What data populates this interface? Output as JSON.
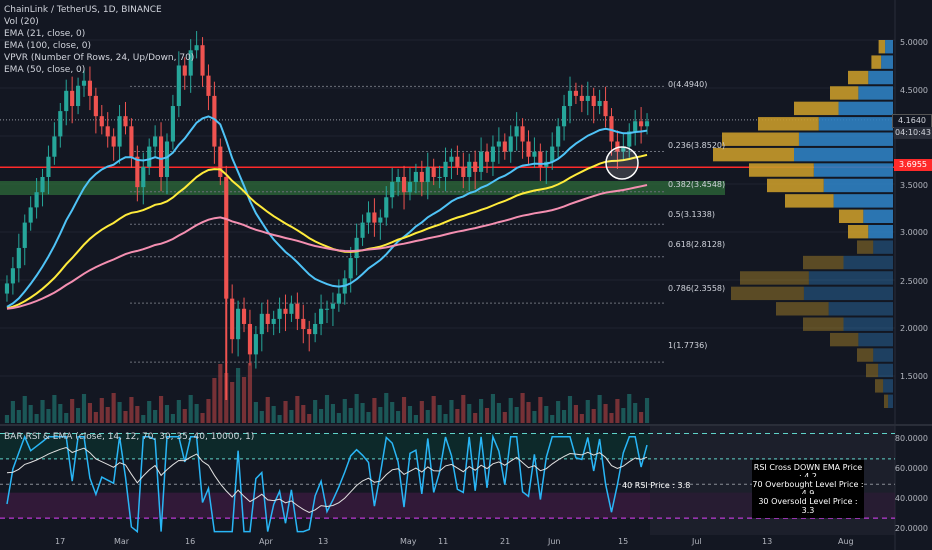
{
  "legend": {
    "title": "ChainLink / TetherUS, 1D, BINANCE",
    "ind1": "Vol (20)",
    "ind2": "EMA (21, close, 0)",
    "ind3": "EMA (100, close, 0)",
    "ind4": "VPVR (Number Of Rows, 24, Up/Down, 70)",
    "ind5": "EMA (50, close, 0)"
  },
  "rsi_legend": "BAR RSI & EMA (close, 14, 12, 70, 30, 35, 40, 10000, 1)",
  "price_tags": {
    "last": "4.1640",
    "countdown": "04:10:43",
    "hline": "3.6955"
  },
  "fib": {
    "f0": "0(4.4940)",
    "f236": "0.236(3.8520)",
    "f382": "0.382(3.4548)",
    "f5": "0.5(3.1338)",
    "f618": "0.618(2.8128)",
    "f786": "0.786(2.3558)",
    "f1": "1(1.7736)"
  },
  "y_axis": [
    "5.0000",
    "4.5000",
    "3.5000",
    "3.0000",
    "2.5000",
    "2.0000",
    "1.5000"
  ],
  "rsi_axis": [
    "80.0000",
    "60.0000",
    "40.0000",
    "20.0000"
  ],
  "x_axis": [
    "17",
    "Mar",
    "16",
    "Apr",
    "13",
    "May",
    "11",
    "21",
    "Jun",
    "15",
    "Jul",
    "13",
    "Aug"
  ],
  "rsi_info": {
    "cross_down": "RSI Cross DOWN EMA Price : 4.2",
    "overbought": "70 Overbought Level Price : 4.9",
    "oversold": "30 Oversold Level Price : 3.3",
    "rsi40": "40 RSI Price : 3.8"
  },
  "colors": {
    "bg": "#131722",
    "up": "#26a69a",
    "down": "#ef5350",
    "ema21": "#4fc3f7",
    "ema50": "#ffeb3b",
    "ema100": "#f48fb1",
    "vpvr_up": "#2f7fc1",
    "vpvr_down": "#c89a2a",
    "support": "#2e6b3a",
    "hline": "#ff2a2a"
  },
  "chart_data": {
    "type": "candlestick",
    "price_range": [
      1.4,
      5.05
    ],
    "closes": [
      2.55,
      2.7,
      2.9,
      3.15,
      3.3,
      3.45,
      3.6,
      3.8,
      4.0,
      4.25,
      4.45,
      4.3,
      4.5,
      4.55,
      4.4,
      4.2,
      4.1,
      4.0,
      3.9,
      4.2,
      4.1,
      3.8,
      3.5,
      3.7,
      3.9,
      4.0,
      3.6,
      3.95,
      4.3,
      4.7,
      4.6,
      4.85,
      4.9,
      4.6,
      4.4,
      3.9,
      3.6,
      2.4,
      2.0,
      2.3,
      2.15,
      1.85,
      2.05,
      2.25,
      2.15,
      2.2,
      2.3,
      2.25,
      2.35,
      2.2,
      2.1,
      2.05,
      2.15,
      2.3,
      2.3,
      2.35,
      2.45,
      2.6,
      2.8,
      3.0,
      3.15,
      3.25,
      3.15,
      3.2,
      3.4,
      3.55,
      3.6,
      3.45,
      3.55,
      3.65,
      3.55,
      3.7,
      3.6,
      3.6,
      3.75,
      3.8,
      3.7,
      3.6,
      3.75,
      3.65,
      3.85,
      3.75,
      3.9,
      3.95,
      3.85,
      4.0,
      4.1,
      3.95,
      3.8,
      3.85,
      3.7,
      3.75,
      3.9,
      4.1,
      4.3,
      4.45,
      4.4,
      4.35,
      4.4,
      4.3,
      4.35,
      4.2,
      3.95,
      3.85,
      3.9,
      4.05,
      4.15,
      4.1,
      4.15
    ],
    "vpvr_rows": [
      0.08,
      0.12,
      0.25,
      0.35,
      0.55,
      0.75,
      0.95,
      1.0,
      0.8,
      0.7,
      0.6,
      0.3,
      0.25,
      0.2,
      0.5,
      0.85,
      0.9,
      0.65,
      0.5,
      0.35,
      0.2,
      0.15,
      0.1,
      0.05
    ],
    "rsi_levels": [
      80,
      65,
      50,
      45,
      35,
      30
    ]
  }
}
